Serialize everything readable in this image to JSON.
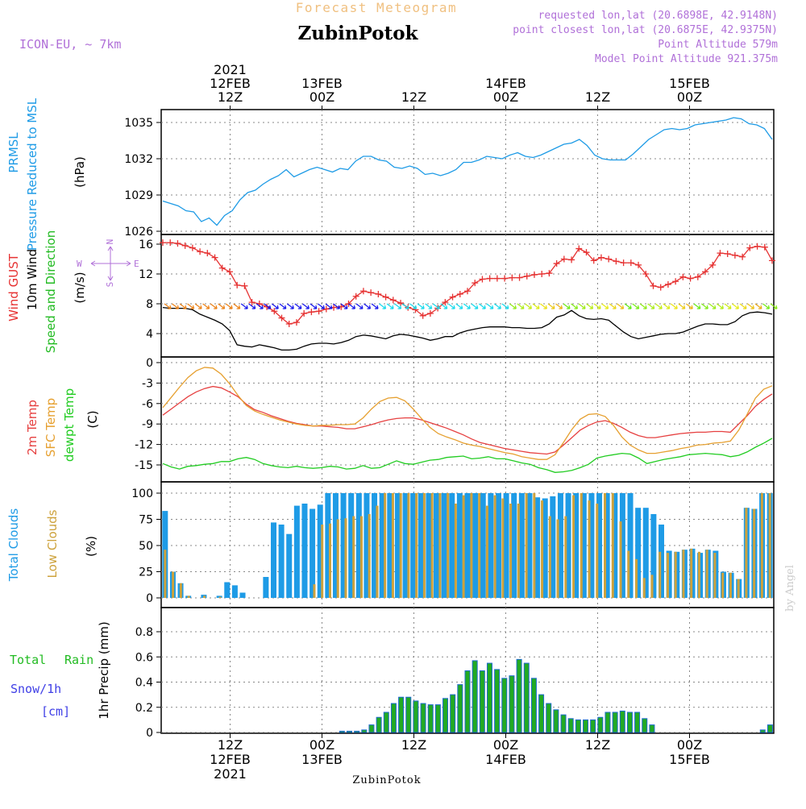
{
  "header": {
    "title": "Forecast Meteogram",
    "location": "ZubinPotok",
    "model": "ICON-EU, ~ 7km",
    "requested": "requested lon,lat (20.6898E, 42.9148N)",
    "closest": "point closest lon,lat (20.6875E, 42.9375N)",
    "point_altitude": "Point Altitude 579m",
    "model_altitude": "Model Point Altitude 921.375m"
  },
  "footer": {
    "location": "ZubinPotok",
    "credit": "by Angel"
  },
  "colors": {
    "prmsl": "#1e9be6",
    "gust": "#e63232",
    "wind10m": "#000000",
    "direction": "#22bb22",
    "temp2m": "#e64040",
    "sfc": "#e6a030",
    "dewpt": "#22cc22",
    "total_clouds": "#1e9be6",
    "low_clouds": "#cda23c",
    "rain": "#22aa22",
    "snow": "#4040e6",
    "frame_grey": "#aaaaaa",
    "header_violet": "#b070d8",
    "title_orange": "#f0c080"
  },
  "chart_data": {
    "type": "meteogram",
    "time_axis": {
      "start": "2021-02-12T03Z",
      "end": "2021-02-15T12Z",
      "step_hours": 1,
      "top_ticks": [
        {
          "day": "2021",
          "date": "12FEB",
          "hour": "12Z",
          "t": 9
        },
        {
          "date": "13FEB",
          "hour": "00Z",
          "t": 21
        },
        {
          "hour": "12Z",
          "t": 33
        },
        {
          "date": "14FEB",
          "hour": "00Z",
          "t": 45
        },
        {
          "hour": "12Z",
          "t": 57
        },
        {
          "date": "15FEB",
          "hour": "00Z",
          "t": 69
        }
      ],
      "bottom_ticks": [
        {
          "hour": "12Z",
          "date": "12FEB",
          "year": "2021",
          "t": 9
        },
        {
          "hour": "00Z",
          "date": "13FEB",
          "t": 21
        },
        {
          "hour": "12Z",
          "t": 33
        },
        {
          "hour": "00Z",
          "date": "14FEB",
          "t": 45
        },
        {
          "hour": "12Z",
          "t": 57
        },
        {
          "hour": "00Z",
          "date": "15FEB",
          "t": 69
        }
      ]
    },
    "panels": [
      {
        "id": "pressure",
        "labels": [
          "PRMSL",
          "Pressure Reduced to MSL"
        ],
        "unit": "(hPa)",
        "ylim": [
          1026,
          1036
        ],
        "yticks": [
          "1026",
          "1029",
          "1032",
          "1035"
        ],
        "series": [
          {
            "name": "PRMSL",
            "type": "line",
            "values": [
              1028.5,
              1028.3,
              1028.1,
              1027.7,
              1027.6,
              1026.8,
              1027.1,
              1026.5,
              1027.3,
              1027.7,
              1028.6,
              1029.2,
              1029.4,
              1029.9,
              1030.3,
              1030.6,
              1031.1,
              1030.5,
              1030.8,
              1031.1,
              1031.3,
              1031.1,
              1030.9,
              1031.2,
              1031.1,
              1031.8,
              1032.2,
              1032.2,
              1031.9,
              1031.8,
              1031.3,
              1031.2,
              1031.4,
              1031.2,
              1030.7,
              1030.8,
              1030.6,
              1030.8,
              1031.1,
              1031.7,
              1031.7,
              1031.9,
              1032.2,
              1032.1,
              1032.0,
              1032.3,
              1032.5,
              1032.2,
              1032.1,
              1032.3,
              1032.6,
              1032.9,
              1033.2,
              1033.3,
              1033.6,
              1033.1,
              1032.3,
              1032.0,
              1031.9,
              1031.9,
              1031.9,
              1032.4,
              1033.0,
              1033.6,
              1034.0,
              1034.4,
              1034.5,
              1034.4,
              1034.5,
              1034.8,
              1034.9,
              1035.0,
              1035.1,
              1035.2,
              1035.4,
              1035.3,
              1034.9,
              1034.8,
              1034.5,
              1033.6
            ]
          }
        ]
      },
      {
        "id": "wind",
        "labels": [
          "Wind GUST",
          "10m Wind",
          "Speed and Direction"
        ],
        "unit": "(m/s)",
        "compass": {
          "n": "N",
          "s": "S",
          "w": "W",
          "e": "E"
        },
        "ylim": [
          0,
          17
        ],
        "yticks": [
          "4",
          "8",
          "12",
          "16"
        ],
        "series": [
          {
            "name": "Wind GUST",
            "type": "line-marker",
            "values": [
              16.2,
              16.2,
              16.1,
              15.8,
              15.5,
              15.0,
              14.8,
              14.2,
              12.8,
              12.3,
              10.5,
              10.4,
              8.2,
              8.0,
              7.6,
              7.0,
              6.1,
              5.3,
              5.5,
              6.7,
              6.9,
              7.0,
              7.3,
              7.5,
              7.6,
              8.0,
              9.0,
              9.7,
              9.5,
              9.3,
              8.9,
              8.5,
              8.1,
              7.5,
              7.2,
              6.4,
              6.7,
              7.4,
              8.2,
              8.9,
              9.3,
              9.7,
              10.8,
              11.3,
              11.4,
              11.4,
              11.4,
              11.5,
              11.5,
              11.7,
              11.9,
              12.0,
              12.1,
              13.4,
              14.0,
              13.9,
              15.4,
              14.9,
              13.8,
              14.2,
              14.0,
              13.7,
              13.5,
              13.5,
              13.2,
              12.0,
              10.4,
              10.2,
              10.6,
              11.0,
              11.6,
              11.4,
              11.6,
              12.3,
              13.2,
              14.8,
              14.7,
              14.5,
              14.3,
              15.5,
              15.7,
              15.6,
              13.8
            ]
          },
          {
            "name": "10m Wind",
            "type": "line",
            "values": [
              7.5,
              7.4,
              7.4,
              7.4,
              7.2,
              6.6,
              6.2,
              5.8,
              5.3,
              4.4,
              2.5,
              2.3,
              2.2,
              2.5,
              2.3,
              2.1,
              1.8,
              1.8,
              1.9,
              2.3,
              2.6,
              2.7,
              2.7,
              2.6,
              2.8,
              3.1,
              3.6,
              3.8,
              3.7,
              3.5,
              3.3,
              3.7,
              3.9,
              3.8,
              3.6,
              3.4,
              3.1,
              3.3,
              3.6,
              3.6,
              4.1,
              4.4,
              4.6,
              4.8,
              4.9,
              4.9,
              4.9,
              4.8,
              4.8,
              4.7,
              4.7,
              4.8,
              5.3,
              6.2,
              6.5,
              7.1,
              6.4,
              6.0,
              5.9,
              6.0,
              5.8,
              5.0,
              4.2,
              3.6,
              3.3,
              3.5,
              3.7,
              3.9,
              4.0,
              4.0,
              4.2,
              4.6,
              5.0,
              5.3,
              5.3,
              5.2,
              5.2,
              5.6,
              6.4,
              6.8,
              6.9,
              6.8,
              6.6
            ]
          }
        ]
      },
      {
        "id": "temperature",
        "labels": [
          "2m Temp",
          "SFC Temp",
          "dewpt Temp"
        ],
        "unit": "(C)",
        "ylim": [
          -17,
          0
        ],
        "yticks": [
          "0",
          "-3",
          "-6",
          "-9",
          "-12",
          "-15"
        ],
        "series": [
          {
            "name": "2m Temp",
            "type": "line",
            "values": [
              -7.7,
              -6.8,
              -5.9,
              -5.0,
              -4.3,
              -3.8,
              -3.5,
              -3.7,
              -4.3,
              -5.0,
              -6.1,
              -6.9,
              -7.3,
              -7.8,
              -8.2,
              -8.6,
              -8.9,
              -9.1,
              -9.3,
              -9.3,
              -9.4,
              -9.5,
              -9.7,
              -9.7,
              -9.4,
              -9.1,
              -8.7,
              -8.4,
              -8.2,
              -8.1,
              -8.1,
              -8.4,
              -8.8,
              -9.2,
              -9.6,
              -10.1,
              -10.6,
              -11.2,
              -11.7,
              -12.0,
              -12.3,
              -12.6,
              -12.8,
              -13.0,
              -13.2,
              -13.3,
              -13.4,
              -13.1,
              -12.1,
              -11.0,
              -9.9,
              -9.2,
              -8.7,
              -8.5,
              -8.9,
              -9.5,
              -10.2,
              -10.7,
              -11.0,
              -11.0,
              -10.8,
              -10.6,
              -10.4,
              -10.3,
              -10.2,
              -10.2,
              -10.1,
              -10.1,
              -10.2,
              -9.0,
              -7.8,
              -6.4,
              -5.4,
              -4.6
            ]
          },
          {
            "name": "SFC Temp",
            "type": "line",
            "values": [
              -6.6,
              -5.1,
              -3.6,
              -2.2,
              -1.2,
              -0.7,
              -0.8,
              -1.7,
              -3.1,
              -4.8,
              -6.3,
              -7.1,
              -7.6,
              -8.0,
              -8.4,
              -8.7,
              -9.0,
              -9.2,
              -9.3,
              -9.2,
              -9.2,
              -9.1,
              -9.1,
              -9.0,
              -8.1,
              -6.8,
              -5.7,
              -5.2,
              -5.1,
              -5.6,
              -6.8,
              -8.2,
              -9.5,
              -10.4,
              -10.9,
              -11.3,
              -11.8,
              -12.1,
              -12.3,
              -12.6,
              -12.9,
              -13.2,
              -13.4,
              -13.8,
              -14.0,
              -14.2,
              -14.2,
              -13.5,
              -11.7,
              -9.8,
              -8.3,
              -7.6,
              -7.5,
              -7.9,
              -9.2,
              -10.9,
              -12.1,
              -12.8,
              -13.3,
              -13.3,
              -13.1,
              -12.9,
              -12.6,
              -12.4,
              -12.1,
              -12.0,
              -11.8,
              -11.7,
              -11.5,
              -9.9,
              -7.6,
              -5.2,
              -3.9,
              -3.4
            ]
          },
          {
            "name": "dewpt Temp",
            "type": "line",
            "values": [
              -14.8,
              -15.3,
              -15.6,
              -15.2,
              -15.1,
              -14.9,
              -14.8,
              -14.5,
              -14.5,
              -14.1,
              -13.9,
              -14.2,
              -14.8,
              -15.1,
              -15.3,
              -15.4,
              -15.2,
              -15.4,
              -15.5,
              -15.4,
              -15.2,
              -15.3,
              -15.6,
              -15.5,
              -15.1,
              -15.5,
              -15.4,
              -14.9,
              -14.4,
              -14.8,
              -14.9,
              -14.6,
              -14.3,
              -14.2,
              -13.9,
              -13.8,
              -13.7,
              -14.1,
              -14.0,
              -13.8,
              -14.1,
              -14.1,
              -14.4,
              -14.7,
              -14.9,
              -15.4,
              -15.7,
              -16.1,
              -16.0,
              -15.8,
              -15.4,
              -14.9,
              -14.0,
              -13.7,
              -13.5,
              -13.3,
              -13.4,
              -14.0,
              -14.8,
              -14.5,
              -14.2,
              -14.0,
              -13.8,
              -13.5,
              -13.4,
              -13.3,
              -13.4,
              -13.5,
              -13.8,
              -13.6,
              -13.1,
              -12.4,
              -11.8,
              -11.1
            ]
          }
        ]
      },
      {
        "id": "clouds",
        "labels": [
          "Total Clouds",
          "Low Clouds"
        ],
        "unit": "(%)",
        "ylim": [
          0,
          100
        ],
        "yticks": [
          "0",
          "25",
          "50",
          "75",
          "100"
        ],
        "series": [
          {
            "name": "Total Clouds",
            "type": "bar",
            "values": [
              83,
              25,
              14,
              2,
              0,
              3,
              0,
              2,
              15,
              12,
              5,
              0,
              0,
              20,
              72,
              70,
              61,
              88,
              90,
              85,
              89,
              100,
              100,
              100,
              100,
              100,
              100,
              100,
              100,
              100,
              100,
              100,
              100,
              100,
              100,
              100,
              100,
              100,
              100,
              100,
              100,
              100,
              100,
              100,
              100,
              100,
              100,
              100,
              96,
              95,
              97,
              100,
              100,
              100,
              100,
              100,
              100,
              100,
              100,
              100,
              100,
              86,
              86,
              80,
              70,
              45,
              44,
              46,
              47,
              43,
              46,
              45,
              25,
              24,
              18,
              86,
              85,
              100,
              100
            ]
          },
          {
            "name": "Low Clouds",
            "type": "bar",
            "values": [
              46,
              25,
              14,
              2,
              0,
              2,
              0,
              1,
              0,
              0,
              0,
              0,
              0,
              0,
              0,
              0,
              0,
              0,
              0,
              13,
              70,
              71,
              75,
              76,
              78,
              78,
              80,
              88,
              100,
              100,
              100,
              100,
              100,
              100,
              100,
              100,
              100,
              90,
              98,
              100,
              100,
              88,
              98,
              95,
              90,
              90,
              100,
              100,
              93,
              78,
              75,
              78,
              98,
              100,
              93,
              90,
              100,
              100,
              73,
              45,
              37,
              19,
              22,
              44,
              43,
              44,
              46,
              47,
              44,
              46,
              43,
              24,
              24,
              18,
              86,
              85,
              100,
              100
            ]
          }
        ]
      },
      {
        "id": "precip",
        "labels": [
          "Total",
          "Rain",
          "Snow/1h",
          "[cm]"
        ],
        "unit": "1hr Precip (mm)",
        "ylim": [
          0,
          1.0
        ],
        "yticks": [
          "0",
          "0.2",
          "0.4",
          "0.6",
          "0.8"
        ],
        "series": [
          {
            "name": "Rain",
            "type": "bar",
            "values": [
              0,
              0,
              0,
              0,
              0,
              0,
              0,
              0,
              0,
              0,
              0,
              0,
              0,
              0,
              0,
              0,
              0,
              0,
              0,
              0,
              0,
              0,
              0,
              0,
              0.01,
              0.01,
              0.01,
              0.02,
              0.06,
              0.12,
              0.16,
              0.23,
              0.28,
              0.28,
              0.25,
              0.23,
              0.22,
              0.22,
              0.27,
              0.3,
              0.38,
              0.49,
              0.57,
              0.49,
              0.55,
              0.5,
              0.43,
              0.45,
              0.58,
              0.55,
              0.43,
              0.3,
              0.23,
              0.18,
              0.14,
              0.11,
              0.1,
              0.1,
              0.1,
              0.12,
              0.16,
              0.16,
              0.17,
              0.16,
              0.16,
              0.11,
              0.06,
              0,
              0,
              0,
              0,
              0,
              0,
              0,
              0,
              0,
              0,
              0,
              0,
              0,
              0,
              0.02,
              0.06
            ]
          }
        ]
      }
    ]
  }
}
